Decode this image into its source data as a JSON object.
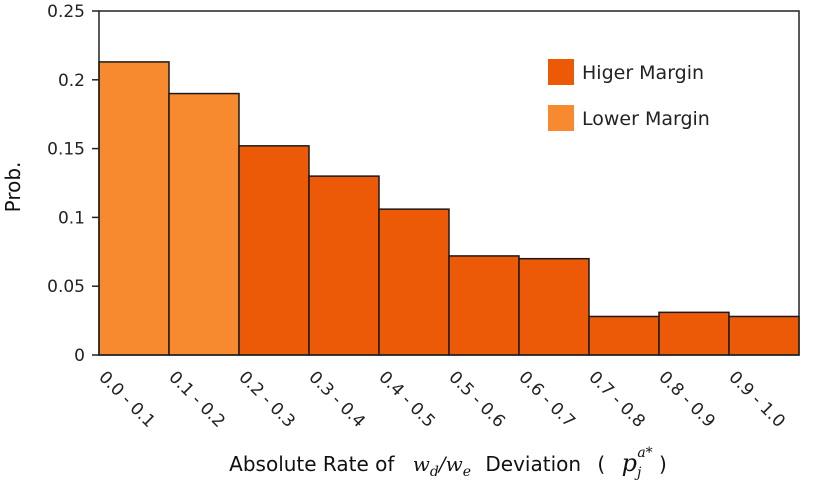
{
  "chart_data": {
    "type": "bar",
    "categories": [
      "0.0 - 0.1",
      "0.1 - 0.2",
      "0.2 - 0.3",
      "0.3 - 0.4",
      "0.4 - 0.5",
      "0.5 - 0.6",
      "0.6 - 0.7",
      "0.7 - 0.8",
      "0.8 - 0.9",
      "0.9 - 1.0"
    ],
    "values": [
      0.213,
      0.19,
      0.152,
      0.13,
      0.106,
      0.072,
      0.07,
      0.028,
      0.031,
      0.028
    ],
    "groups": [
      "Lower Margin",
      "Lower Margin",
      "Higer Margin",
      "Higer Margin",
      "Higer Margin",
      "Higer Margin",
      "Higer Margin",
      "Higer Margin",
      "Higer Margin",
      "Higer Margin"
    ],
    "xlabel": {
      "prefix": "Absolute Rate of",
      "math_ratio": "w_d/w_e",
      "middle": "Deviation",
      "math_symbol": "p_j^{a*}"
    },
    "ylabel": "Prob.",
    "ylim": [
      0,
      0.25
    ],
    "yticks": [
      0,
      0.05,
      0.1,
      0.15,
      0.2,
      0.25
    ],
    "ytick_labels": [
      "0",
      "0.05",
      "0.1",
      "0.15",
      "0.2",
      "0.25"
    ],
    "legend": {
      "position": "top-right",
      "entries": [
        {
          "label": "Higer Margin",
          "color": "#ec5a08"
        },
        {
          "label": "Lower Margin",
          "color": "#f7892e"
        }
      ]
    },
    "colors": {
      "Higer Margin": "#ec5a08",
      "Lower Margin": "#f7892e",
      "bar_edge": "#1a1a1a"
    },
    "grid": false
  }
}
